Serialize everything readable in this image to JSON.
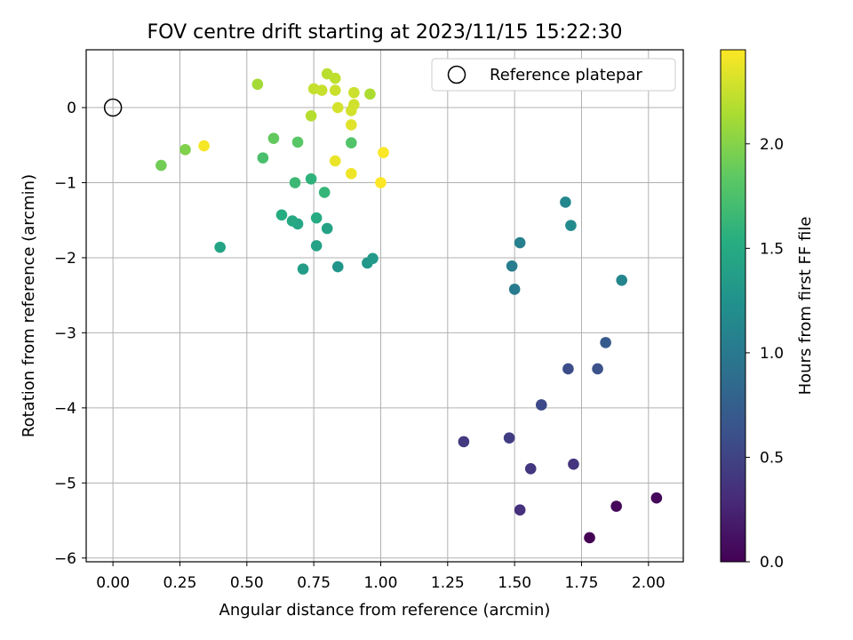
{
  "chart_data": {
    "type": "scatter",
    "title": "FOV centre drift starting at 2023/11/15 15:22:30",
    "xlabel": "Angular distance from reference (arcmin)",
    "ylabel": "Rotation from reference (arcmin)",
    "xlim": [
      -0.1,
      2.13
    ],
    "ylim": [
      -6.05,
      0.77
    ],
    "xticks": [
      "0.00",
      "0.25",
      "0.50",
      "0.75",
      "1.00",
      "1.25",
      "1.50",
      "1.75",
      "2.00"
    ],
    "xtick_values": [
      0,
      0.25,
      0.5,
      0.75,
      1.0,
      1.25,
      1.5,
      1.75,
      2.0
    ],
    "yticks": [
      "0",
      "−1",
      "−2",
      "−3",
      "−4",
      "−5",
      "−6"
    ],
    "ytick_values": [
      0,
      -1,
      -2,
      -3,
      -4,
      -5,
      -6
    ],
    "grid": true,
    "legend": {
      "position": "top-right",
      "entries": [
        "Reference platepar"
      ]
    },
    "reference_point": {
      "x": 0,
      "y": 0
    },
    "colorbar": {
      "label": "Hours from first FF file",
      "colormap": "viridis",
      "range": [
        0.0,
        2.45
      ],
      "ticks": [
        "0.0",
        "0.5",
        "1.0",
        "1.5",
        "2.0"
      ],
      "tick_values": [
        0.0,
        0.5,
        1.0,
        1.5,
        2.0
      ]
    },
    "points": [
      {
        "x": 1.78,
        "y": -5.73,
        "t": 0.0
      },
      {
        "x": 1.88,
        "y": -5.31,
        "t": 0.04
      },
      {
        "x": 2.03,
        "y": -5.2,
        "t": 0.06
      },
      {
        "x": 1.52,
        "y": -5.36,
        "t": 0.35
      },
      {
        "x": 1.72,
        "y": -4.75,
        "t": 0.38
      },
      {
        "x": 1.56,
        "y": -4.81,
        "t": 0.4
      },
      {
        "x": 1.31,
        "y": -4.45,
        "t": 0.42
      },
      {
        "x": 1.48,
        "y": -4.4,
        "t": 0.45
      },
      {
        "x": 1.6,
        "y": -3.96,
        "t": 0.55
      },
      {
        "x": 1.7,
        "y": -3.48,
        "t": 0.58
      },
      {
        "x": 1.81,
        "y": -3.48,
        "t": 0.62
      },
      {
        "x": 1.84,
        "y": -3.13,
        "t": 0.7
      },
      {
        "x": 1.5,
        "y": -2.42,
        "t": 1.02
      },
      {
        "x": 1.49,
        "y": -2.11,
        "t": 1.04
      },
      {
        "x": 1.52,
        "y": -1.8,
        "t": 1.07
      },
      {
        "x": 1.9,
        "y": -2.3,
        "t": 1.12
      },
      {
        "x": 1.69,
        "y": -1.26,
        "t": 1.14
      },
      {
        "x": 1.71,
        "y": -1.57,
        "t": 1.17
      },
      {
        "x": 0.84,
        "y": -2.12,
        "t": 1.28
      },
      {
        "x": 0.95,
        "y": -2.07,
        "t": 1.3
      },
      {
        "x": 0.97,
        "y": -2.01,
        "t": 1.32
      },
      {
        "x": 0.71,
        "y": -2.15,
        "t": 1.36
      },
      {
        "x": 0.76,
        "y": -1.84,
        "t": 1.4
      },
      {
        "x": 0.8,
        "y": -1.61,
        "t": 1.42
      },
      {
        "x": 0.4,
        "y": -1.86,
        "t": 1.44
      },
      {
        "x": 0.69,
        "y": -1.55,
        "t": 1.46
      },
      {
        "x": 0.67,
        "y": -1.51,
        "t": 1.48
      },
      {
        "x": 0.76,
        "y": -1.47,
        "t": 1.5
      },
      {
        "x": 0.63,
        "y": -1.43,
        "t": 1.52
      },
      {
        "x": 0.74,
        "y": -0.95,
        "t": 1.58
      },
      {
        "x": 0.79,
        "y": -1.13,
        "t": 1.62
      },
      {
        "x": 0.68,
        "y": -1.0,
        "t": 1.66
      },
      {
        "x": 0.56,
        "y": -0.67,
        "t": 1.74
      },
      {
        "x": 0.89,
        "y": -0.47,
        "t": 1.78
      },
      {
        "x": 0.69,
        "y": -0.46,
        "t": 1.82
      },
      {
        "x": 0.6,
        "y": -0.41,
        "t": 1.86
      },
      {
        "x": 0.18,
        "y": -0.77,
        "t": 1.92
      },
      {
        "x": 0.27,
        "y": -0.56,
        "t": 1.98
      },
      {
        "x": 0.54,
        "y": 0.31,
        "t": 2.12
      },
      {
        "x": 0.96,
        "y": 0.18,
        "t": 2.15
      },
      {
        "x": 0.74,
        "y": -0.11,
        "t": 2.18
      },
      {
        "x": 0.8,
        "y": 0.45,
        "t": 2.2
      },
      {
        "x": 0.83,
        "y": 0.39,
        "t": 2.22
      },
      {
        "x": 0.75,
        "y": 0.25,
        "t": 2.24
      },
      {
        "x": 0.78,
        "y": 0.23,
        "t": 2.25
      },
      {
        "x": 0.83,
        "y": 0.23,
        "t": 2.26
      },
      {
        "x": 0.9,
        "y": 0.2,
        "t": 2.27
      },
      {
        "x": 0.9,
        "y": 0.04,
        "t": 2.28
      },
      {
        "x": 0.89,
        "y": -0.04,
        "t": 2.29
      },
      {
        "x": 0.84,
        "y": 0.0,
        "t": 2.3
      },
      {
        "x": 0.89,
        "y": -0.23,
        "t": 2.34
      },
      {
        "x": 0.83,
        "y": -0.71,
        "t": 2.38
      },
      {
        "x": 0.89,
        "y": -0.88,
        "t": 2.4
      },
      {
        "x": 0.34,
        "y": -0.51,
        "t": 2.42
      },
      {
        "x": 1.01,
        "y": -0.6,
        "t": 2.44
      },
      {
        "x": 1.0,
        "y": -1.0,
        "t": 2.45
      }
    ]
  }
}
